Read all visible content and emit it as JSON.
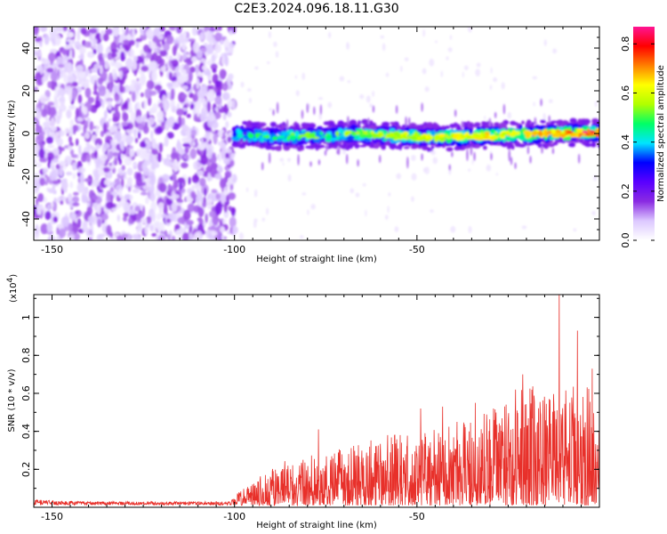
{
  "chart_data": [
    {
      "type": "heatmap",
      "title": "C2E3.2024.096.18.11.G30",
      "xlabel": "Height of straight line (km)",
      "ylabel": "Frequency (Hz)",
      "xlim": [
        -155,
        0
      ],
      "ylim": [
        -50,
        50
      ],
      "x_ticks": [
        -150,
        -100,
        -50
      ],
      "y_ticks": [
        -40,
        -20,
        0,
        20,
        40
      ],
      "colorbar": {
        "label": "Normalized spectral amplitude",
        "range": [
          0,
          0.87
        ],
        "ticks": [
          0.0,
          0.2,
          0.4,
          0.6,
          0.8
        ],
        "colors": [
          "#ffffff",
          "#dcc8ff",
          "#8a2be2",
          "#5a00ff",
          "#0000ff",
          "#00e5ff",
          "#00ff66",
          "#b0ff00",
          "#ffff00",
          "#ff7f00",
          "#ff0000",
          "#ff1493"
        ]
      },
      "regions": [
        {
          "x_range": [
            -155,
            -100
          ],
          "description_level": 0.12,
          "spread_hz": 50
        },
        {
          "x_range": [
            -100,
            0
          ],
          "band_center_hz": [
            -1,
            0
          ],
          "band_halfwidth_hz": 5,
          "peak_amplitude": 0.87
        }
      ],
      "grid": false
    },
    {
      "type": "line",
      "xlabel": "Height of straight line (km)",
      "ylabel": "SNR (10 * v/v)",
      "y_multiplier": "(x10",
      "y_multiplier_exp": "4",
      "xlim": [
        -155,
        0
      ],
      "ylim": [
        0,
        1.12
      ],
      "x_ticks": [
        -150,
        -100,
        -50
      ],
      "y_ticks": [
        0.2,
        0.4,
        0.6,
        0.8,
        1
      ],
      "series": [
        {
          "color": "#e8302a",
          "envelope": [
            {
              "x": -155,
              "y": 0.04
            },
            {
              "x": -140,
              "y": 0.03
            },
            {
              "x": -120,
              "y": 0.03
            },
            {
              "x": -102,
              "y": 0.03
            },
            {
              "x": -95,
              "y": 0.12
            },
            {
              "x": -90,
              "y": 0.2
            },
            {
              "x": -85,
              "y": 0.25
            },
            {
              "x": -75,
              "y": 0.28
            },
            {
              "x": -65,
              "y": 0.33
            },
            {
              "x": -55,
              "y": 0.38
            },
            {
              "x": -45,
              "y": 0.4
            },
            {
              "x": -35,
              "y": 0.45
            },
            {
              "x": -25,
              "y": 0.55
            },
            {
              "x": -20,
              "y": 0.65
            },
            {
              "x": -15,
              "y": 0.6
            },
            {
              "x": -10,
              "y": 0.65
            },
            {
              "x": -5,
              "y": 0.68
            },
            {
              "x": 0,
              "y": 0.55
            }
          ],
          "peaks": [
            {
              "x": -77,
              "y": 0.41
            },
            {
              "x": -71,
              "y": 0.3
            },
            {
              "x": -58,
              "y": 0.38
            },
            {
              "x": -49,
              "y": 0.52
            },
            {
              "x": -43,
              "y": 0.53
            },
            {
              "x": -39,
              "y": 0.45
            },
            {
              "x": -34,
              "y": 0.55
            },
            {
              "x": -29,
              "y": 0.52
            },
            {
              "x": -23,
              "y": 0.62
            },
            {
              "x": -21,
              "y": 0.7
            },
            {
              "x": -11,
              "y": 1.12
            },
            {
              "x": -6,
              "y": 0.93
            },
            {
              "x": -2,
              "y": 0.73
            }
          ]
        }
      ]
    }
  ]
}
